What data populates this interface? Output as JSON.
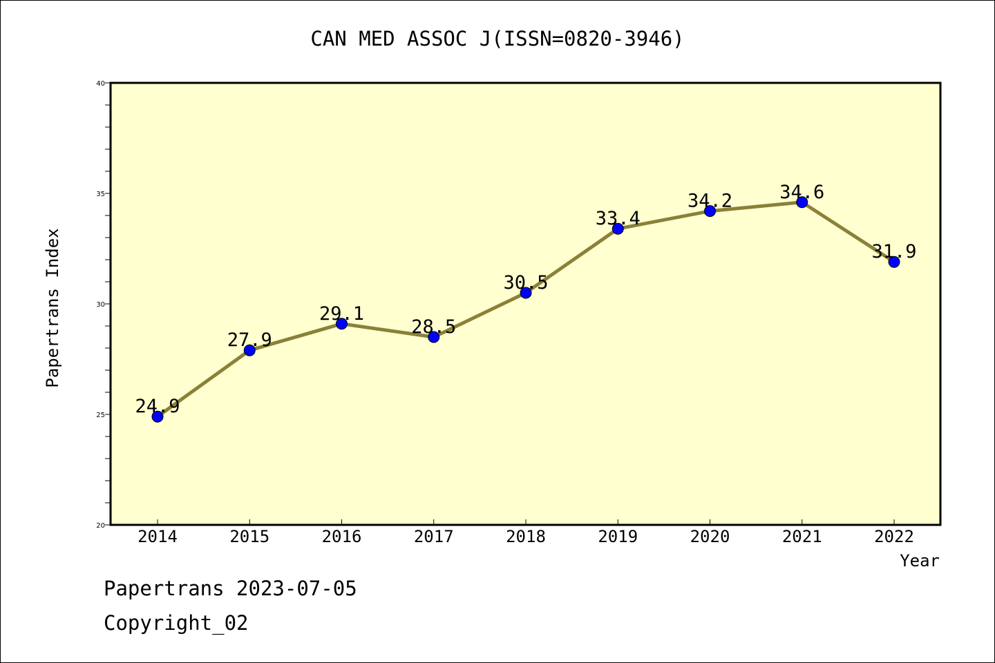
{
  "chart_data": {
    "type": "line",
    "title": "CAN MED ASSOC J(ISSN=0820-3946)",
    "xlabel": "Year",
    "ylabel": "Papertrans Index",
    "categories": [
      "2014",
      "2015",
      "2016",
      "2017",
      "2018",
      "2019",
      "2020",
      "2021",
      "2022"
    ],
    "series": [
      {
        "values": [
          24.9,
          27.9,
          29.1,
          28.5,
          30.5,
          33.4,
          34.2,
          34.6,
          31.9
        ]
      }
    ],
    "data_labels": [
      "24.9",
      "27.9",
      "29.1",
      "28.5",
      "30.5",
      "33.4",
      "34.2",
      "34.6",
      "31.9"
    ],
    "ylim": [
      20,
      40
    ],
    "y_ticks": [
      20,
      25,
      30,
      35,
      40
    ],
    "y_minor_step": 1,
    "grid": false,
    "legend": "none",
    "colors": {
      "plot_background": "#ffffd0",
      "line": "#8b8038",
      "marker": "#0000ff",
      "axes": "#000000"
    }
  },
  "footer": {
    "line1": "Papertrans 2023-07-05",
    "line2": "Copyright_02"
  }
}
